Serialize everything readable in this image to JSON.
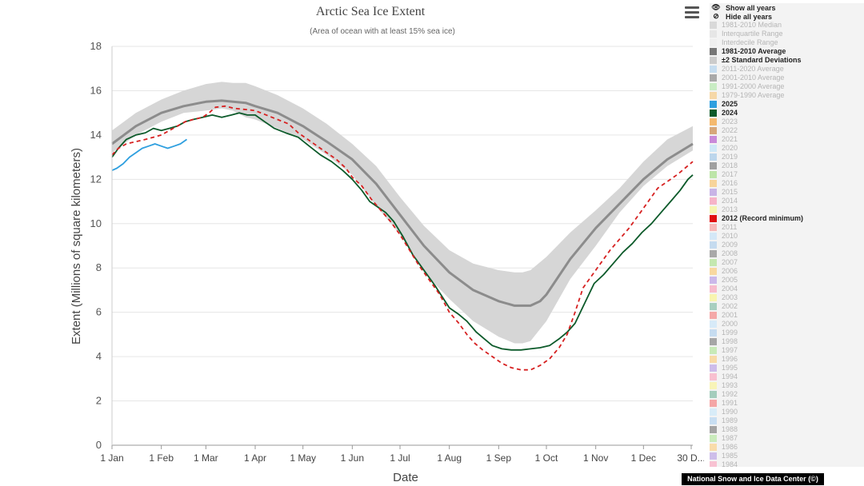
{
  "chart_data": {
    "type": "line",
    "title": "Arctic Sea Ice Extent",
    "subtitle": "(Area of ocean with at least 15% sea ice)",
    "xlabel": "Date",
    "ylabel": "Extent (Millions of square kilometers)",
    "ylim": [
      0,
      18
    ],
    "yticks": [
      0,
      2,
      4,
      6,
      8,
      10,
      12,
      14,
      16,
      18
    ],
    "xlim": [
      1,
      366
    ],
    "xticks": [
      {
        "day": 1,
        "label": "1 Jan"
      },
      {
        "day": 32,
        "label": "1 Feb"
      },
      {
        "day": 60,
        "label": "1 Mar"
      },
      {
        "day": 91,
        "label": "1 Apr"
      },
      {
        "day": 121,
        "label": "1 May"
      },
      {
        "day": 152,
        "label": "1 Jun"
      },
      {
        "day": 182,
        "label": "1 Jul"
      },
      {
        "day": 213,
        "label": "1 Aug"
      },
      {
        "day": 244,
        "label": "1 Sep"
      },
      {
        "day": 274,
        "label": "1 Oct"
      },
      {
        "day": 305,
        "label": "1 Nov"
      },
      {
        "day": 335,
        "label": "1 Dec"
      },
      {
        "day": 365,
        "label": "30 D..."
      }
    ],
    "grid": "horizontal",
    "legend_placement": "right",
    "series": [
      {
        "name": "±2 Standard Deviations",
        "kind": "band",
        "color": "#d6d6d6",
        "x": [
          1,
          16,
          32,
          46,
          60,
          70,
          77,
          85,
          91,
          105,
          121,
          136,
          152,
          167,
          182,
          197,
          213,
          228,
          244,
          254,
          259,
          264,
          274,
          289,
          305,
          320,
          335,
          350,
          366
        ],
        "upper": [
          14.2,
          15.0,
          15.6,
          16.0,
          16.3,
          16.4,
          16.35,
          16.35,
          16.2,
          15.8,
          15.2,
          14.5,
          13.6,
          12.6,
          11.2,
          9.9,
          8.8,
          8.2,
          7.9,
          7.8,
          7.8,
          7.9,
          8.5,
          9.6,
          10.6,
          11.6,
          12.8,
          13.8,
          14.4
        ],
        "lower": [
          13.2,
          14.0,
          14.6,
          15.0,
          15.1,
          15.2,
          15.1,
          14.8,
          14.7,
          14.3,
          13.8,
          13.1,
          12.2,
          10.8,
          9.5,
          7.8,
          6.6,
          5.6,
          4.9,
          4.6,
          4.6,
          4.7,
          5.6,
          7.5,
          9.0,
          10.5,
          11.7,
          12.6,
          13.3
        ]
      },
      {
        "name": "1981-2010 Average",
        "kind": "line",
        "color": "#8c8c8c",
        "x": [
          1,
          16,
          32,
          46,
          60,
          70,
          85,
          91,
          105,
          121,
          136,
          152,
          167,
          182,
          197,
          213,
          228,
          244,
          254,
          264,
          270,
          274,
          289,
          305,
          320,
          335,
          350,
          366
        ],
        "y": [
          13.6,
          14.4,
          15.0,
          15.3,
          15.5,
          15.55,
          15.45,
          15.3,
          15.0,
          14.4,
          13.7,
          12.9,
          11.8,
          10.4,
          9.0,
          7.8,
          7.0,
          6.5,
          6.3,
          6.3,
          6.5,
          6.8,
          8.4,
          9.8,
          10.9,
          12.0,
          12.9,
          13.6
        ]
      },
      {
        "name": "2024",
        "kind": "line",
        "color": "#0c5a2a",
        "x": [
          1,
          5,
          10,
          16,
          22,
          27,
          32,
          37,
          42,
          47,
          52,
          58,
          64,
          70,
          76,
          81,
          86,
          91,
          97,
          103,
          110,
          118,
          125,
          132,
          139,
          146,
          152,
          158,
          163,
          167,
          173,
          178,
          184,
          190,
          197,
          204,
          213,
          219,
          224,
          230,
          235,
          240,
          246,
          252,
          258,
          264,
          270,
          276,
          282,
          287,
          292,
          298,
          304,
          310,
          316,
          322,
          328,
          334,
          340,
          346,
          352,
          358,
          363,
          366
        ],
        "y": [
          13.0,
          13.4,
          13.8,
          14.0,
          14.1,
          14.3,
          14.2,
          14.3,
          14.4,
          14.6,
          14.7,
          14.8,
          14.9,
          14.8,
          14.9,
          15.0,
          14.9,
          14.9,
          14.6,
          14.3,
          14.1,
          13.9,
          13.5,
          13.1,
          12.8,
          12.4,
          12.0,
          11.5,
          11.0,
          10.8,
          10.5,
          10.1,
          9.4,
          8.6,
          7.9,
          7.2,
          6.2,
          5.9,
          5.6,
          5.1,
          4.8,
          4.5,
          4.35,
          4.3,
          4.3,
          4.35,
          4.4,
          4.5,
          4.8,
          5.1,
          5.5,
          6.4,
          7.3,
          7.7,
          8.2,
          8.7,
          9.1,
          9.6,
          10.0,
          10.5,
          11.0,
          11.5,
          12.0,
          12.2
        ]
      },
      {
        "name": "2012 (Record minimum)",
        "kind": "dashed",
        "color": "#d62020",
        "x": [
          1,
          5,
          10,
          16,
          22,
          27,
          32,
          37,
          42,
          47,
          52,
          58,
          62,
          66,
          72,
          78,
          85,
          91,
          98,
          105,
          112,
          118,
          124,
          130,
          136,
          142,
          148,
          152,
          158,
          164,
          170,
          176,
          182,
          188,
          194,
          200,
          207,
          213,
          219,
          224,
          229,
          234,
          240,
          246,
          252,
          258,
          264,
          270,
          276,
          282,
          287,
          292,
          297,
          302,
          308,
          314,
          320,
          326,
          332,
          338,
          344,
          350,
          356,
          361,
          366
        ],
        "y": [
          13.1,
          13.4,
          13.6,
          13.7,
          13.8,
          13.9,
          14.0,
          14.2,
          14.4,
          14.6,
          14.7,
          14.8,
          15.0,
          15.25,
          15.3,
          15.2,
          15.15,
          15.1,
          14.9,
          14.7,
          14.5,
          14.1,
          13.8,
          13.5,
          13.2,
          12.9,
          12.5,
          12.1,
          11.7,
          11.1,
          10.6,
          10.1,
          9.5,
          8.8,
          8.1,
          7.5,
          6.8,
          6.0,
          5.5,
          5.0,
          4.6,
          4.3,
          4.0,
          3.7,
          3.5,
          3.4,
          3.4,
          3.6,
          3.9,
          4.4,
          5.0,
          6.0,
          7.1,
          7.6,
          8.2,
          8.8,
          9.3,
          9.8,
          10.4,
          11.0,
          11.6,
          11.9,
          12.2,
          12.5,
          12.8
        ]
      },
      {
        "name": "2025",
        "kind": "line",
        "color": "#2e9fdf",
        "x": [
          1,
          4,
          8,
          12,
          16,
          20,
          24,
          28,
          32,
          36,
          40,
          44,
          48
        ],
        "y": [
          12.4,
          12.5,
          12.7,
          13.0,
          13.2,
          13.4,
          13.5,
          13.6,
          13.5,
          13.4,
          13.5,
          13.6,
          13.8
        ]
      }
    ]
  },
  "legend": {
    "show_all": "Show all years",
    "hide_all": "Hide all years",
    "items": [
      {
        "label": "1981-2010 Median",
        "color": "#d9d9d9",
        "state": "dim"
      },
      {
        "label": "Interquartile Range",
        "color": "#e6e6e6",
        "state": "dim"
      },
      {
        "label": "Interdecile Range",
        "color": "#efefef",
        "state": "dim"
      },
      {
        "label": "1981-2010 Average",
        "color": "#777777",
        "state": "bold"
      },
      {
        "label": "±2 Standard Deviations",
        "color": "#cccccc",
        "state": "bold"
      },
      {
        "label": "2011-2020 Average",
        "color": "#c6ddf0",
        "state": "dim"
      },
      {
        "label": "2001-2010 Average",
        "color": "#a9a9a9",
        "state": "dim"
      },
      {
        "label": "1991-2000 Average",
        "color": "#c9ecc4",
        "state": "dim"
      },
      {
        "label": "1979-1990 Average",
        "color": "#f6d8a8",
        "state": "dim"
      },
      {
        "label": "2025",
        "color": "#2e9fdf",
        "state": "bold"
      },
      {
        "label": "2024",
        "color": "#0c5a2a",
        "state": "bold"
      },
      {
        "label": "2023",
        "color": "#f4b96e",
        "state": "dim"
      },
      {
        "label": "2022",
        "color": "#d6a77a",
        "state": "dim"
      },
      {
        "label": "2021",
        "color": "#c98ad9",
        "state": "dim"
      },
      {
        "label": "2020",
        "color": "#cfe8f7",
        "state": "dim"
      },
      {
        "label": "2019",
        "color": "#bcd6ec",
        "state": "dim"
      },
      {
        "label": "2018",
        "color": "#a0a0a0",
        "state": "dim"
      },
      {
        "label": "2017",
        "color": "#bde5a8",
        "state": "dim"
      },
      {
        "label": "2016",
        "color": "#f7d49a",
        "state": "dim"
      },
      {
        "label": "2015",
        "color": "#c8b4e6",
        "state": "dim"
      },
      {
        "label": "2014",
        "color": "#f6b4c8",
        "state": "dim"
      },
      {
        "label": "2013",
        "color": "#f5f5b0",
        "state": "dim"
      },
      {
        "label": "2012 (Record minimum)",
        "color": "#e01010",
        "state": "bold"
      },
      {
        "label": "2011",
        "color": "#f7b8b8",
        "state": "dim"
      },
      {
        "label": "2010",
        "color": "#d4e8f7",
        "state": "dim"
      },
      {
        "label": "2009",
        "color": "#c5dbef",
        "state": "dim"
      },
      {
        "label": "2008",
        "color": "#a8a8a8",
        "state": "dim"
      },
      {
        "label": "2007",
        "color": "#c4e8b0",
        "state": "dim"
      },
      {
        "label": "2006",
        "color": "#f8d8a0",
        "state": "dim"
      },
      {
        "label": "2005",
        "color": "#cbb8ea",
        "state": "dim"
      },
      {
        "label": "2004",
        "color": "#f7bccd",
        "state": "dim"
      },
      {
        "label": "2003",
        "color": "#f8f4b0",
        "state": "dim"
      },
      {
        "label": "2002",
        "color": "#a8cfc0",
        "state": "dim"
      },
      {
        "label": "2001",
        "color": "#f4a8a8",
        "state": "dim"
      },
      {
        "label": "2000",
        "color": "#d7eaf8",
        "state": "dim"
      },
      {
        "label": "1999",
        "color": "#c6dcf0",
        "state": "dim"
      },
      {
        "label": "1998",
        "color": "#a6a6a6",
        "state": "dim"
      },
      {
        "label": "1997",
        "color": "#c8eab8",
        "state": "dim"
      },
      {
        "label": "1996",
        "color": "#f8daa6",
        "state": "dim"
      },
      {
        "label": "1995",
        "color": "#cdbcea",
        "state": "dim"
      },
      {
        "label": "1994",
        "color": "#f8c0d0",
        "state": "dim"
      },
      {
        "label": "1993",
        "color": "#f8f4b8",
        "state": "dim"
      },
      {
        "label": "1992",
        "color": "#a4cdbd",
        "state": "dim"
      },
      {
        "label": "1991",
        "color": "#f4a6a6",
        "state": "dim"
      },
      {
        "label": "1990",
        "color": "#d8ecf8",
        "state": "dim"
      },
      {
        "label": "1989",
        "color": "#c8def2",
        "state": "dim"
      },
      {
        "label": "1988",
        "color": "#a4a4a4",
        "state": "dim"
      },
      {
        "label": "1987",
        "color": "#caebbc",
        "state": "dim"
      },
      {
        "label": "1986",
        "color": "#f9dcaa",
        "state": "dim"
      },
      {
        "label": "1985",
        "color": "#cebeea",
        "state": "dim"
      },
      {
        "label": "1984",
        "color": "#f8c2d2",
        "state": "dim"
      }
    ]
  },
  "credit": "National Snow and Ice Data Center (©)"
}
